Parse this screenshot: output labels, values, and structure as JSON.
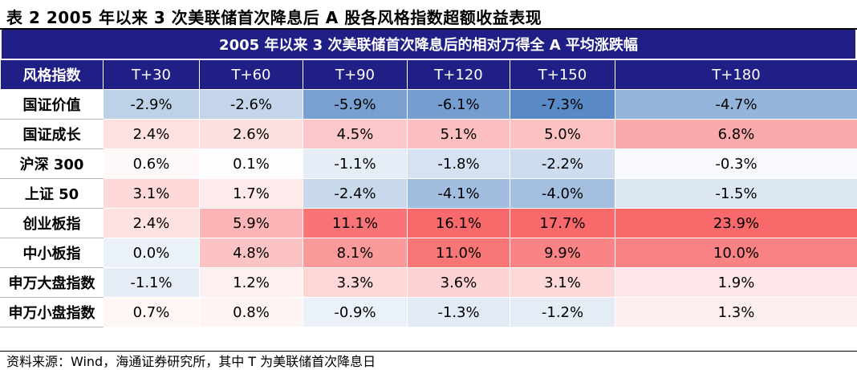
{
  "title": "表 2 2005 年以来 3 次美联储首次降息后 A 股各风格指数超额收益表现",
  "source": "资料来源：Wind，海通证券研究所，其中 T 为美联储首次降息日",
  "chart_data": {
    "type": "table",
    "subtitle": "2005 年以来 3 次美联储首次降息后的相对万得全 A 平均涨跌幅",
    "corner_header": "风格指数",
    "columns": [
      "T+30",
      "T+60",
      "T+90",
      "T+120",
      "T+150",
      "T+180"
    ],
    "rows": [
      {
        "name": "国证价值",
        "values": [
          -2.9,
          -2.6,
          -5.9,
          -6.1,
          -7.3,
          -4.7
        ]
      },
      {
        "name": "国证成长",
        "values": [
          2.4,
          2.6,
          4.5,
          5.1,
          5.0,
          6.8
        ]
      },
      {
        "name": "沪深 300",
        "values": [
          0.6,
          0.1,
          -1.1,
          -1.8,
          -2.2,
          -0.3
        ]
      },
      {
        "name": "上证 50",
        "values": [
          3.1,
          1.7,
          -2.4,
          -4.1,
          -4.0,
          -1.5
        ]
      },
      {
        "name": "创业板指",
        "values": [
          2.4,
          5.9,
          11.1,
          16.1,
          17.7,
          23.9
        ]
      },
      {
        "name": "中小板指",
        "values": [
          0.0,
          4.8,
          8.1,
          11.0,
          9.9,
          10.0
        ]
      },
      {
        "name": "申万大盘指数",
        "values": [
          -1.1,
          1.2,
          3.3,
          3.6,
          3.1,
          1.9
        ]
      },
      {
        "name": "申万小盘指数",
        "values": [
          0.7,
          0.8,
          -0.9,
          -1.3,
          -1.2,
          1.3
        ]
      }
    ],
    "unit": "%",
    "colors": {
      "header_bg": "#1f1f86",
      "header_text": "#ffffff",
      "positive": "#f8696b",
      "negative": "#5a8ac6",
      "neutral": "#ffffff"
    }
  }
}
